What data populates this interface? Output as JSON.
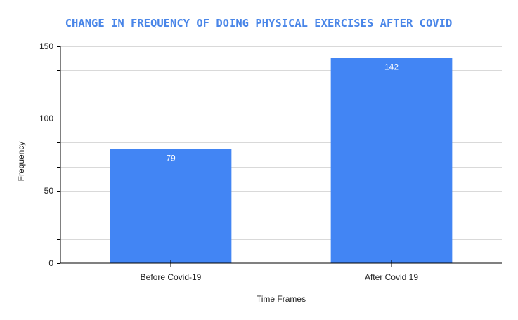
{
  "chart_data": {
    "type": "bar",
    "title": "CHANGE IN FREQUENCY OF DOING PHYSICAL EXERCISES AFTER COVID",
    "xlabel": "Time Frames",
    "ylabel": "Frequency",
    "categories": [
      "Before Covid-19",
      "After Covid 19"
    ],
    "values": [
      79,
      142
    ],
    "data_labels": [
      "79",
      "142"
    ],
    "ylim": [
      0,
      150
    ],
    "yticks": [
      0,
      50,
      100,
      150
    ],
    "ytick_labels": [
      "0",
      "50",
      "100",
      "150"
    ],
    "grid": true,
    "bar_color": "#4285f4",
    "title_color": "#4a86e8"
  }
}
